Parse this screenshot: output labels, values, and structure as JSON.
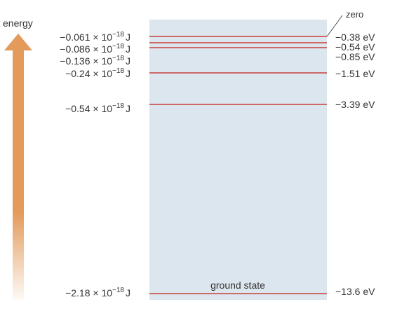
{
  "diagram": {
    "axis_label": "energy",
    "zero_label": "zero",
    "ground_state_label": "ground state",
    "colors": {
      "panel": "#dce6ef",
      "level_line": "#c8413c",
      "arrow": "#e39a5a",
      "text": "#333333"
    },
    "levels": [
      {
        "joule_mantissa": "−0.061 × 10",
        "joule_exp": "−18",
        "joule_unit": "J",
        "ev": "−0.38 eV"
      },
      {
        "joule_mantissa": "−0.086 × 10",
        "joule_exp": "−18",
        "joule_unit": "J",
        "ev": "−0.54 eV"
      },
      {
        "joule_mantissa": "−0.136 × 10",
        "joule_exp": "−18",
        "joule_unit": "J",
        "ev": "−0.85 eV"
      },
      {
        "joule_mantissa": "−0.24 × 10",
        "joule_exp": "−18",
        "joule_unit": "J",
        "ev": "−1.51 eV"
      },
      {
        "joule_mantissa": "−0.54 × 10",
        "joule_exp": "−18",
        "joule_unit": "J",
        "ev": "−3.39 eV"
      },
      {
        "joule_mantissa": "−2.18 × 10",
        "joule_exp": "−18",
        "joule_unit": "J",
        "ev": "−13.6 eV"
      }
    ]
  }
}
